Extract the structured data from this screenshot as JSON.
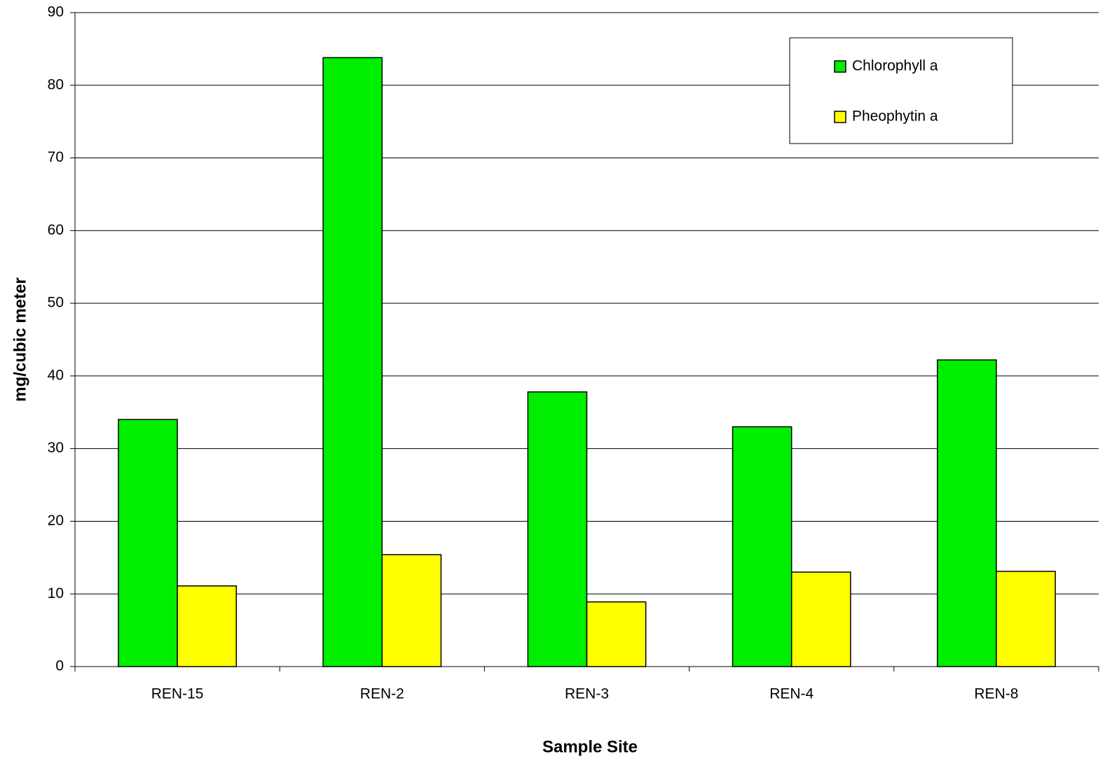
{
  "chart_data": {
    "type": "bar",
    "categories": [
      "REN-15",
      "REN-2",
      "REN-3",
      "REN-4",
      "REN-8"
    ],
    "series": [
      {
        "name": "Chlorophyll a",
        "color": "#00ee00",
        "values": [
          34.0,
          83.8,
          37.8,
          33.0,
          42.2
        ]
      },
      {
        "name": "Pheophytin a",
        "color": "#ffff00",
        "values": [
          11.1,
          15.4,
          8.9,
          13.0,
          13.1
        ]
      }
    ],
    "x_label": "Sample Site",
    "y_label": "mg/cubic meter",
    "ylim": [
      0,
      90
    ],
    "yticks": [
      0,
      10,
      20,
      30,
      40,
      50,
      60,
      70,
      80,
      90
    ],
    "grid": true,
    "legend": "upper right"
  }
}
